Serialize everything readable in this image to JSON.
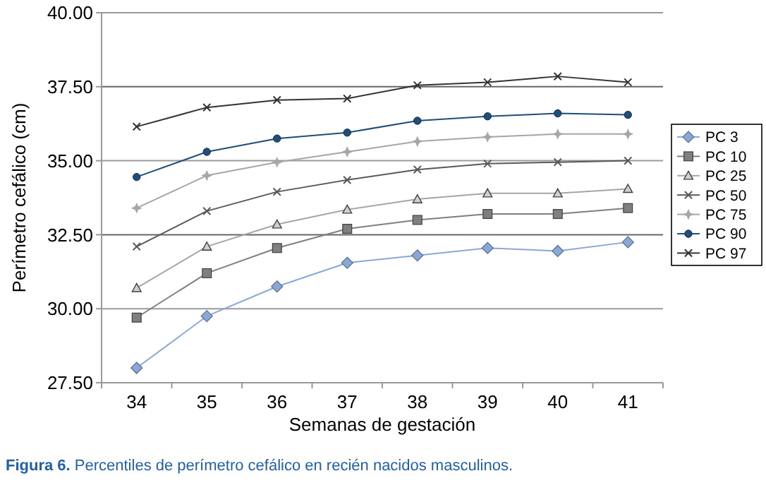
{
  "chart_data": {
    "type": "line",
    "xlabel": "Semanas de gestación",
    "ylabel": "Perímetro cefálico (cm)",
    "categories": [
      "34",
      "35",
      "36",
      "37",
      "38",
      "39",
      "40",
      "41"
    ],
    "ylim": [
      27.5,
      40
    ],
    "yticks": [
      {
        "value": 27.5,
        "label": "27.50"
      },
      {
        "value": 30,
        "label": "30.00"
      },
      {
        "value": 32.5,
        "label": "32.50"
      },
      {
        "value": 35,
        "label": "35.00"
      },
      {
        "value": 37.5,
        "label": "37.50"
      },
      {
        "value": 40,
        "label": "40.00"
      }
    ],
    "grid": "y",
    "legend": "right",
    "series": [
      {
        "name": "PC 3",
        "color": "#8aa8d6",
        "marker": "diamond",
        "values": [
          28.0,
          29.75,
          30.75,
          31.55,
          31.8,
          32.05,
          31.95,
          32.25
        ]
      },
      {
        "name": "PC 10",
        "color": "#7f7f7f",
        "marker": "square",
        "values": [
          29.7,
          31.2,
          32.05,
          32.7,
          33.0,
          33.2,
          33.2,
          33.4
        ]
      },
      {
        "name": "PC 25",
        "color": "#a6a6a6",
        "marker": "triangle",
        "values": [
          30.7,
          32.1,
          32.85,
          33.35,
          33.7,
          33.9,
          33.9,
          34.05
        ]
      },
      {
        "name": "PC 50",
        "color": "#595959",
        "marker": "cross",
        "values": [
          32.1,
          33.3,
          33.95,
          34.35,
          34.7,
          34.9,
          34.95,
          35.0
        ]
      },
      {
        "name": "PC 75",
        "color": "#a6a6a6",
        "marker": "star",
        "values": [
          33.4,
          34.5,
          34.95,
          35.3,
          35.65,
          35.8,
          35.9,
          35.9
        ]
      },
      {
        "name": "PC 90",
        "color": "#1f4e79",
        "marker": "circle",
        "values": [
          34.45,
          35.3,
          35.75,
          35.95,
          36.35,
          36.5,
          36.6,
          36.55
        ]
      },
      {
        "name": "PC 97",
        "color": "#333333",
        "marker": "cross",
        "values": [
          36.15,
          36.8,
          37.05,
          37.1,
          37.55,
          37.65,
          37.85,
          37.65
        ]
      }
    ],
    "annotations": [
      "Figura 6. Percentiles de perímetro cefálico en recién nacidos masculinos."
    ]
  }
}
